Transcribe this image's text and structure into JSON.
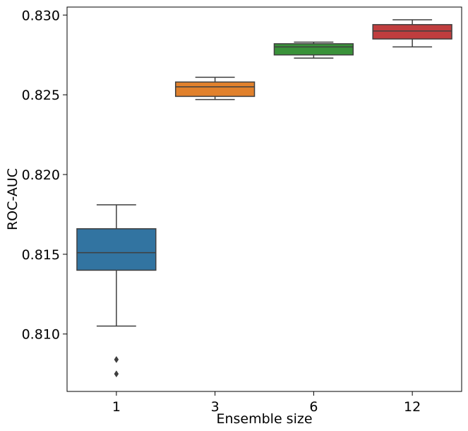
{
  "chart_data": {
    "type": "box",
    "xlabel": "Ensemble size",
    "ylabel": "ROC-AUC",
    "categories": [
      "1",
      "3",
      "6",
      "12"
    ],
    "ylim": [
      0.8064,
      0.8305
    ],
    "yticks": [
      {
        "value": 0.81,
        "label": "0.810"
      },
      {
        "value": 0.815,
        "label": "0.815"
      },
      {
        "value": 0.82,
        "label": "0.820"
      },
      {
        "value": 0.825,
        "label": "0.825"
      },
      {
        "value": 0.83,
        "label": "0.830"
      }
    ],
    "grid": false,
    "legend": "none",
    "boxes": [
      {
        "category": "1",
        "color": "#3274a1",
        "whisker_low": 0.8105,
        "q1": 0.814,
        "median": 0.8151,
        "q3": 0.8166,
        "whisker_high": 0.8181,
        "outliers": [
          0.8084,
          0.8075
        ]
      },
      {
        "category": "3",
        "color": "#e1812c",
        "whisker_low": 0.8247,
        "q1": 0.8249,
        "median": 0.8255,
        "q3": 0.8258,
        "whisker_high": 0.8261,
        "outliers": []
      },
      {
        "category": "6",
        "color": "#3a923a",
        "whisker_low": 0.8273,
        "q1": 0.8275,
        "median": 0.828,
        "q3": 0.8282,
        "whisker_high": 0.8283,
        "outliers": []
      },
      {
        "category": "12",
        "color": "#c03d3e",
        "whisker_low": 0.828,
        "q1": 0.8285,
        "median": 0.829,
        "q3": 0.8294,
        "whisker_high": 0.8297,
        "outliers": []
      }
    ]
  }
}
